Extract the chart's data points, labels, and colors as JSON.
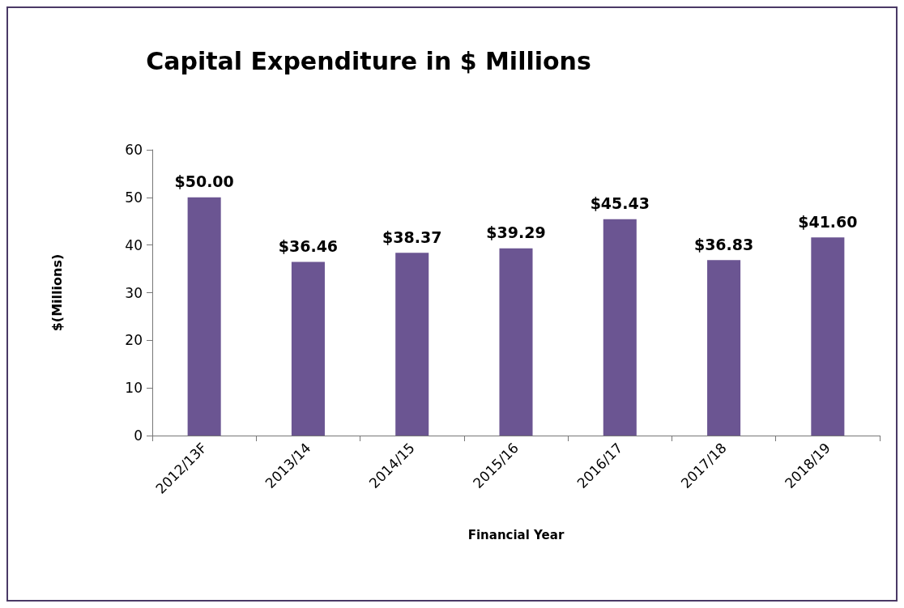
{
  "chart_data": {
    "type": "bar",
    "title": "Capital Expenditure in $ Millions",
    "xlabel": "Financial Year",
    "ylabel": "$(Millions)",
    "categories": [
      "2012/13F",
      "2013/14",
      "2014/15",
      "2015/16",
      "2016/17",
      "2017/18",
      "2018/19"
    ],
    "values": [
      50.0,
      36.46,
      38.37,
      39.29,
      45.43,
      36.83,
      41.6
    ],
    "value_labels": [
      "$50.00",
      "$36.46",
      "$38.37",
      "$39.29",
      "$45.43",
      "$36.83",
      "$41.60"
    ],
    "color": "#6b5592",
    "ylim": [
      0,
      60
    ],
    "yticks": [
      0,
      10,
      20,
      30,
      40,
      50,
      60
    ],
    "grid": false
  }
}
